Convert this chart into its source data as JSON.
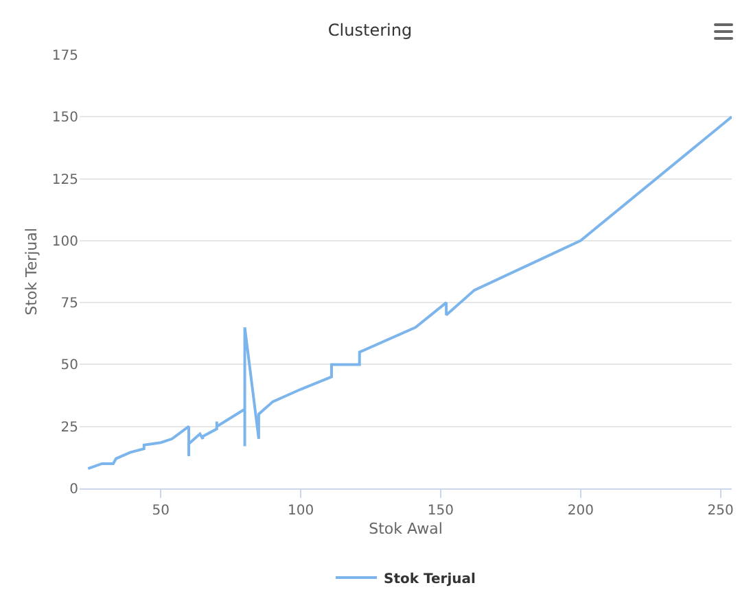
{
  "chart_data": {
    "type": "line",
    "title": "Clustering",
    "xlabel": "Stok Awal",
    "ylabel": "Stok Terjual",
    "x": [
      24,
      29,
      33,
      34,
      39,
      44,
      44,
      50,
      54,
      60,
      60,
      60,
      64,
      65,
      65,
      70,
      70,
      70,
      80,
      80,
      80,
      85,
      85,
      90,
      96,
      100,
      111,
      111,
      121,
      121,
      141,
      152,
      152,
      162,
      200,
      254
    ],
    "series": [
      {
        "name": "Stok Terjual",
        "color": "#7cb5ec",
        "values": [
          8,
          10,
          10,
          12,
          14.5,
          16,
          17.5,
          18.5,
          20,
          25,
          13,
          18,
          22,
          20,
          21,
          24,
          27,
          25,
          32,
          17,
          65,
          20,
          30,
          35,
          38,
          40,
          45,
          50,
          50,
          55,
          65,
          75,
          70,
          80,
          100,
          150
        ]
      }
    ],
    "xlim": [
      21,
      254
    ],
    "xticks": [
      50,
      100,
      150,
      200,
      250
    ],
    "ylim": [
      0,
      175
    ],
    "yticks": [
      0,
      25,
      50,
      75,
      100,
      125,
      150,
      175
    ],
    "grid": "y",
    "legend": "bottom",
    "marker": "none",
    "line_style": "solid"
  }
}
